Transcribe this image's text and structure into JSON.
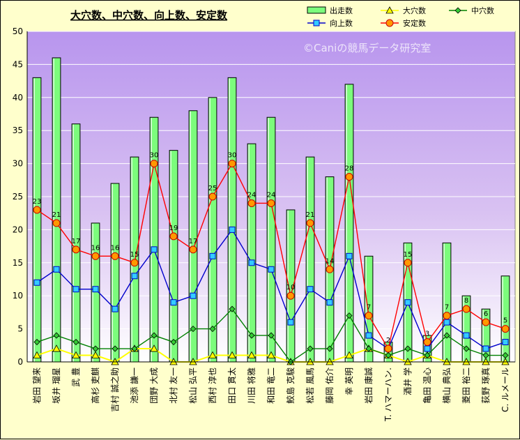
{
  "chart_data": {
    "type": "bar",
    "title": "大穴数、中穴数、向上数、安定数",
    "watermark": "©Caniの競馬データ研究室",
    "ylim": [
      0,
      50
    ],
    "y_ticks": [
      0,
      5,
      10,
      15,
      20,
      25,
      30,
      35,
      40,
      45,
      50
    ],
    "categories": [
      "岩田 望来",
      "坂井 瑠星",
      "武 豊",
      "高杉 吏麒",
      "吉村 誠之助",
      "池添 謙一",
      "団野 大成",
      "北村 友一",
      "松山 弘平",
      "西村 淳也",
      "田口 貫太",
      "川田 将雅",
      "和田 竜二",
      "鮫島 克駿",
      "松若 風馬",
      "藤岡 佑介",
      "幸 英明",
      "岩田 康誠",
      "T. ハマーハン.",
      "酒井 学",
      "亀田 温心",
      "横山 典弘",
      "菱田 裕二",
      "荻野 琢真",
      "C. ルメール"
    ],
    "series": [
      {
        "name": "出走数",
        "type": "bar",
        "color": "#7cfc7c",
        "values": [
          43,
          46,
          36,
          21,
          27,
          31,
          37,
          32,
          38,
          40,
          43,
          33,
          37,
          23,
          31,
          28,
          42,
          16,
          3,
          18,
          4,
          18,
          10,
          8,
          13
        ]
      },
      {
        "name": "大穴数",
        "type": "line",
        "color": "#ffff00",
        "values": [
          1,
          2,
          1,
          1,
          0,
          2,
          2,
          0,
          0,
          1,
          1,
          1,
          1,
          0,
          0,
          0,
          1,
          2,
          1,
          0,
          1,
          0,
          0,
          0,
          0
        ]
      },
      {
        "name": "中穴数",
        "type": "line",
        "color": "#008000",
        "values": [
          3,
          4,
          3,
          2,
          2,
          2,
          4,
          3,
          5,
          5,
          8,
          4,
          4,
          0,
          2,
          2,
          7,
          2,
          1,
          2,
          1,
          4,
          2,
          1,
          1
        ]
      },
      {
        "name": "向上数",
        "type": "line",
        "color": "#0000cc",
        "values": [
          12,
          14,
          11,
          11,
          8,
          13,
          17,
          9,
          10,
          16,
          20,
          15,
          14,
          6,
          11,
          9,
          16,
          4,
          2,
          9,
          2,
          6,
          4,
          2,
          3
        ]
      },
      {
        "name": "安定数",
        "type": "line",
        "color": "#ff0000",
        "values": [
          23,
          21,
          17,
          16,
          16,
          15,
          30,
          19,
          17,
          25,
          30,
          24,
          24,
          10,
          21,
          14,
          28,
          7,
          2,
          15,
          3,
          7,
          8,
          6,
          5
        ]
      }
    ],
    "data_labels_series": "安定数",
    "legend": {
      "position": "top-right",
      "items": [
        "出走数",
        "大穴数",
        "中穴数",
        "向上数",
        "安定数"
      ]
    },
    "plot_background": "#c8a8f0",
    "grid": {
      "horizontal": true,
      "color": "#ffffff"
    }
  }
}
